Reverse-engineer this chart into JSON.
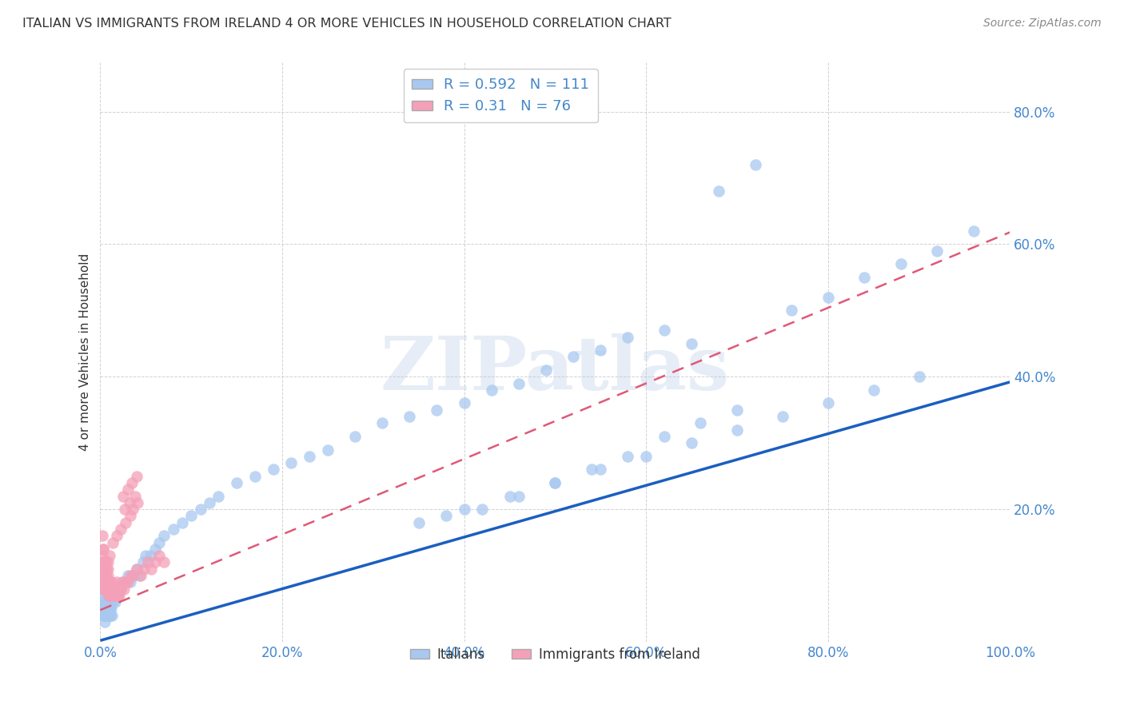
{
  "title": "ITALIAN VS IMMIGRANTS FROM IRELAND 4 OR MORE VEHICLES IN HOUSEHOLD CORRELATION CHART",
  "source": "Source: ZipAtlas.com",
  "ylabel_label": "4 or more Vehicles in Household",
  "watermark_text": "ZIPatlas",
  "xlim": [
    0.0,
    1.0
  ],
  "ylim": [
    0.0,
    0.875
  ],
  "xticks": [
    0.0,
    0.2,
    0.4,
    0.6,
    0.8,
    1.0
  ],
  "yticks": [
    0.0,
    0.2,
    0.4,
    0.6,
    0.8
  ],
  "xtick_labels": [
    "0.0%",
    "20.0%",
    "40.0%",
    "60.0%",
    "80.0%",
    "100.0%"
  ],
  "ytick_labels": [
    "",
    "20.0%",
    "40.0%",
    "60.0%",
    "80.0%"
  ],
  "series1_color": "#a8c8f0",
  "series2_color": "#f4a0b8",
  "line1_color": "#1a5fbf",
  "line2_color": "#e05878",
  "R1": 0.592,
  "N1": 111,
  "R2": 0.31,
  "N2": 76,
  "legend_label1": "Italians",
  "legend_label2": "Immigrants from Ireland",
  "grid_color": "#cccccc",
  "background_color": "#ffffff",
  "tick_color": "#4488cc",
  "title_color": "#333333",
  "source_color": "#888888",
  "italian_line_slope": 0.39,
  "italian_line_intercept": 0.002,
  "ireland_line_slope": 0.57,
  "ireland_line_intercept": 0.048,
  "italian_x": [
    0.002,
    0.003,
    0.003,
    0.003,
    0.004,
    0.004,
    0.004,
    0.004,
    0.005,
    0.005,
    0.005,
    0.005,
    0.005,
    0.006,
    0.006,
    0.006,
    0.007,
    0.007,
    0.007,
    0.008,
    0.008,
    0.008,
    0.009,
    0.009,
    0.009,
    0.009,
    0.01,
    0.01,
    0.01,
    0.01,
    0.011,
    0.011,
    0.012,
    0.012,
    0.013,
    0.013,
    0.014,
    0.015,
    0.016,
    0.017,
    0.018,
    0.019,
    0.02,
    0.022,
    0.025,
    0.028,
    0.03,
    0.033,
    0.036,
    0.04,
    0.043,
    0.047,
    0.05,
    0.055,
    0.06,
    0.065,
    0.07,
    0.08,
    0.09,
    0.1,
    0.11,
    0.12,
    0.13,
    0.15,
    0.17,
    0.19,
    0.21,
    0.23,
    0.25,
    0.28,
    0.31,
    0.34,
    0.37,
    0.4,
    0.43,
    0.46,
    0.49,
    0.52,
    0.55,
    0.58,
    0.62,
    0.65,
    0.68,
    0.72,
    0.76,
    0.8,
    0.84,
    0.88,
    0.92,
    0.96,
    0.4,
    0.45,
    0.5,
    0.55,
    0.6,
    0.65,
    0.7,
    0.75,
    0.8,
    0.85,
    0.9,
    0.35,
    0.38,
    0.42,
    0.46,
    0.5,
    0.54,
    0.58,
    0.62,
    0.66,
    0.7
  ],
  "italian_y": [
    0.04,
    0.06,
    0.05,
    0.07,
    0.05,
    0.04,
    0.06,
    0.05,
    0.03,
    0.05,
    0.04,
    0.06,
    0.05,
    0.04,
    0.06,
    0.05,
    0.07,
    0.04,
    0.05,
    0.06,
    0.04,
    0.05,
    0.06,
    0.05,
    0.04,
    0.07,
    0.05,
    0.04,
    0.06,
    0.05,
    0.07,
    0.04,
    0.06,
    0.05,
    0.07,
    0.04,
    0.06,
    0.07,
    0.06,
    0.07,
    0.08,
    0.07,
    0.08,
    0.08,
    0.09,
    0.09,
    0.1,
    0.09,
    0.1,
    0.11,
    0.1,
    0.12,
    0.13,
    0.13,
    0.14,
    0.15,
    0.16,
    0.17,
    0.18,
    0.19,
    0.2,
    0.21,
    0.22,
    0.24,
    0.25,
    0.26,
    0.27,
    0.28,
    0.29,
    0.31,
    0.33,
    0.34,
    0.35,
    0.36,
    0.38,
    0.39,
    0.41,
    0.43,
    0.44,
    0.46,
    0.47,
    0.45,
    0.68,
    0.72,
    0.5,
    0.52,
    0.55,
    0.57,
    0.59,
    0.62,
    0.2,
    0.22,
    0.24,
    0.26,
    0.28,
    0.3,
    0.32,
    0.34,
    0.36,
    0.38,
    0.4,
    0.18,
    0.19,
    0.2,
    0.22,
    0.24,
    0.26,
    0.28,
    0.31,
    0.33,
    0.35
  ],
  "ireland_x": [
    0.002,
    0.002,
    0.003,
    0.003,
    0.003,
    0.003,
    0.004,
    0.004,
    0.004,
    0.004,
    0.004,
    0.005,
    0.005,
    0.005,
    0.005,
    0.006,
    0.006,
    0.006,
    0.007,
    0.007,
    0.007,
    0.008,
    0.008,
    0.008,
    0.009,
    0.009,
    0.01,
    0.01,
    0.011,
    0.012,
    0.013,
    0.014,
    0.015,
    0.016,
    0.017,
    0.018,
    0.019,
    0.02,
    0.021,
    0.022,
    0.024,
    0.026,
    0.028,
    0.03,
    0.033,
    0.036,
    0.04,
    0.044,
    0.048,
    0.052,
    0.056,
    0.06,
    0.065,
    0.07,
    0.025,
    0.03,
    0.035,
    0.04,
    0.027,
    0.032,
    0.038,
    0.033,
    0.036,
    0.041,
    0.028,
    0.022,
    0.018,
    0.014,
    0.01,
    0.007,
    0.005,
    0.004,
    0.003,
    0.002,
    0.006,
    0.008
  ],
  "ireland_y": [
    0.1,
    0.13,
    0.12,
    0.14,
    0.1,
    0.08,
    0.11,
    0.09,
    0.12,
    0.1,
    0.08,
    0.1,
    0.12,
    0.09,
    0.11,
    0.1,
    0.08,
    0.11,
    0.09,
    0.11,
    0.08,
    0.1,
    0.08,
    0.11,
    0.09,
    0.07,
    0.09,
    0.07,
    0.08,
    0.07,
    0.09,
    0.07,
    0.08,
    0.07,
    0.08,
    0.09,
    0.07,
    0.08,
    0.07,
    0.08,
    0.09,
    0.08,
    0.09,
    0.09,
    0.1,
    0.1,
    0.11,
    0.1,
    0.11,
    0.12,
    0.11,
    0.12,
    0.13,
    0.12,
    0.22,
    0.23,
    0.24,
    0.25,
    0.2,
    0.21,
    0.22,
    0.19,
    0.2,
    0.21,
    0.18,
    0.17,
    0.16,
    0.15,
    0.13,
    0.12,
    0.11,
    0.1,
    0.14,
    0.16,
    0.1,
    0.12
  ]
}
